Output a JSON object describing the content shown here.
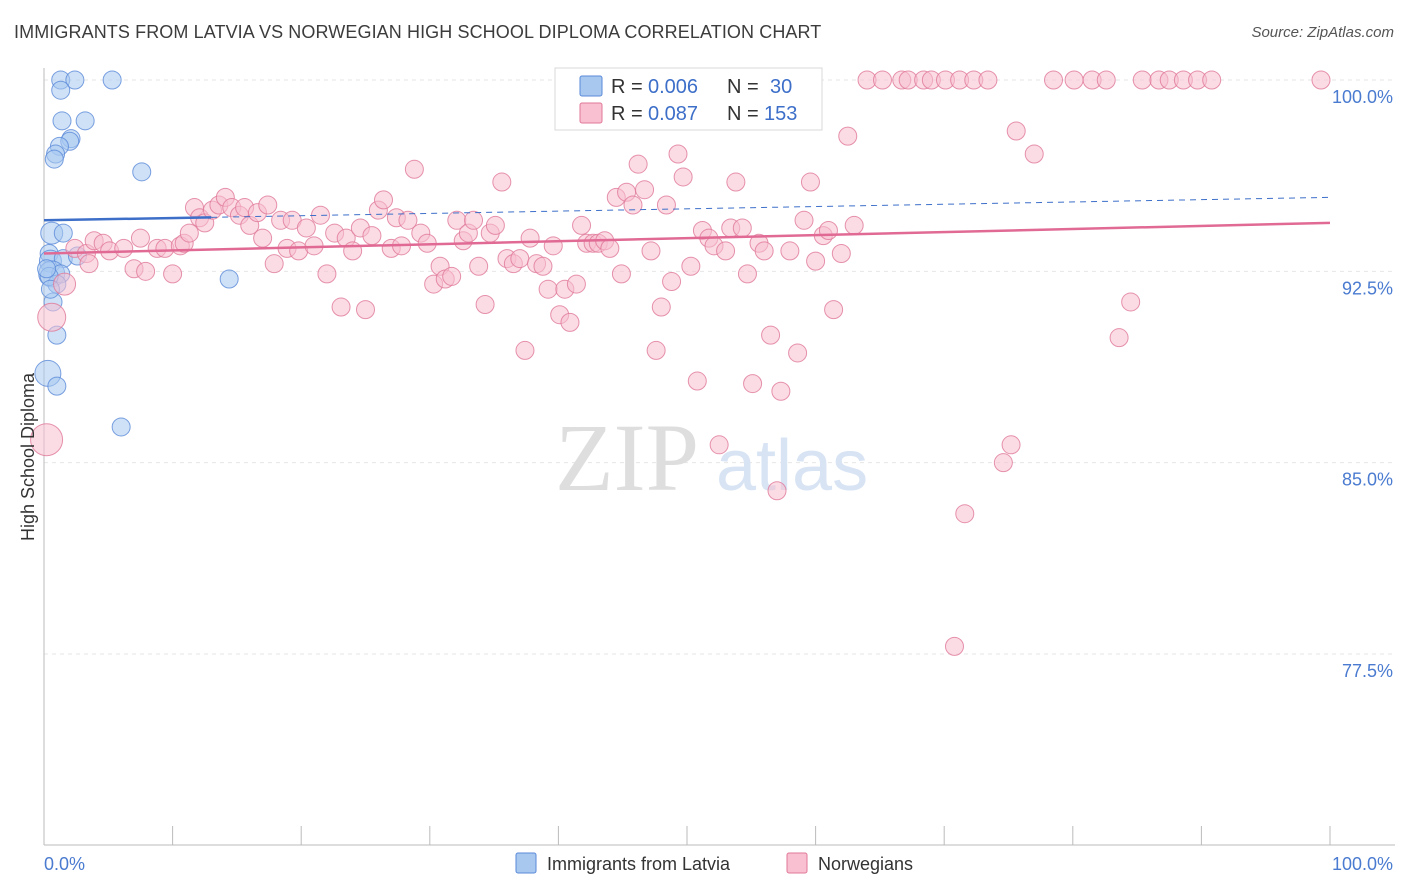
{
  "title": "IMMIGRANTS FROM LATVIA VS NORWEGIAN HIGH SCHOOL DIPLOMA CORRELATION CHART",
  "source": "Source: ZipAtlas.com",
  "watermark": {
    "zip": "ZIP",
    "atlas": "atlas"
  },
  "legend_box": {
    "rows": [
      {
        "r_label": "R = ",
        "r_value": "0.006",
        "n_label": "N = ",
        "n_value": "30",
        "color": "#a8c8f0",
        "stroke": "#5a8ad8"
      },
      {
        "r_label": "R = ",
        "r_value": "0.087",
        "n_label": "N = ",
        "n_value": "153",
        "color": "#f8c0d0",
        "stroke": "#e07898"
      }
    ]
  },
  "bottom_legend": [
    "Immigrants from Latvia",
    "Norwegians"
  ],
  "chart_data": {
    "type": "scatter",
    "xlabel": "",
    "ylabel": "High School Diploma",
    "xlim": [
      0,
      100
    ],
    "ylim": [
      70,
      100.5
    ],
    "x_tick_labels": [
      "0.0%",
      "100.0%"
    ],
    "y_ticks": [
      77.5,
      85.0,
      92.5,
      100.0
    ],
    "y_tick_labels": [
      "77.5%",
      "85.0%",
      "92.5%",
      "100.0%"
    ],
    "colors": {
      "latvia_fill": "#a8c8f0",
      "latvia_stroke": "#5a8ad8",
      "latvia_line": "#3d6fc9",
      "norw_fill": "#f8c0d0",
      "norw_stroke": "#e07898",
      "norw_line": "#e06a94"
    },
    "series": [
      {
        "name": "Immigrants from Latvia",
        "trend": {
          "x0": 0,
          "y0": 94.5,
          "x1": 100,
          "y1": 95.4,
          "solid_until": 13
        },
        "points": [
          [
            1.3,
            100,
            9
          ],
          [
            2.4,
            100,
            9
          ],
          [
            5.3,
            100,
            9
          ],
          [
            1.3,
            99.6,
            9
          ],
          [
            1.4,
            98.4,
            9
          ],
          [
            3.2,
            98.4,
            9
          ],
          [
            2.1,
            97.7,
            9
          ],
          [
            2.0,
            97.6,
            9
          ],
          [
            1.2,
            97.4,
            9
          ],
          [
            0.9,
            97.1,
            9
          ],
          [
            0.8,
            96.9,
            9
          ],
          [
            7.6,
            96.4,
            9
          ],
          [
            0.6,
            94.0,
            11
          ],
          [
            1.5,
            94.0,
            9
          ],
          [
            0.4,
            93.2,
            9
          ],
          [
            0.5,
            92.9,
            11
          ],
          [
            1.5,
            93.0,
            9
          ],
          [
            2.6,
            93.1,
            9
          ],
          [
            0.6,
            92.4,
            13
          ],
          [
            1.3,
            92.4,
            9
          ],
          [
            1.0,
            92.0,
            9
          ],
          [
            0.4,
            92.3,
            9
          ],
          [
            14.4,
            92.2,
            9
          ],
          [
            0.7,
            91.3,
            9
          ],
          [
            1.0,
            90.0,
            9
          ],
          [
            0.3,
            88.5,
            13
          ],
          [
            1.0,
            88.0,
            9
          ],
          [
            6.0,
            86.4,
            9
          ],
          [
            0.2,
            92.6,
            9
          ],
          [
            0.5,
            91.8,
            9
          ]
        ]
      },
      {
        "name": "Norwegians",
        "trend": {
          "x0": 0,
          "y0": 93.2,
          "x1": 100,
          "y1": 94.4
        },
        "points": [
          [
            0.6,
            90.7,
            14
          ],
          [
            0.2,
            85.9,
            16
          ],
          [
            1.6,
            92.0,
            11
          ],
          [
            2.4,
            93.4,
            9
          ],
          [
            3.3,
            93.2,
            9
          ],
          [
            3.5,
            92.8,
            9
          ],
          [
            3.9,
            93.7,
            9
          ],
          [
            4.6,
            93.6,
            9
          ],
          [
            5.1,
            93.3,
            9
          ],
          [
            6.2,
            93.4,
            9
          ],
          [
            7.0,
            92.6,
            9
          ],
          [
            7.5,
            93.8,
            9
          ],
          [
            7.9,
            92.5,
            9
          ],
          [
            8.8,
            93.4,
            9
          ],
          [
            9.4,
            93.4,
            9
          ],
          [
            10.0,
            92.4,
            9
          ],
          [
            10.6,
            93.5,
            9
          ],
          [
            10.9,
            93.6,
            9
          ],
          [
            11.3,
            94.0,
            9
          ],
          [
            11.7,
            95.0,
            9
          ],
          [
            12.1,
            94.6,
            9
          ],
          [
            12.5,
            94.4,
            9
          ],
          [
            13.1,
            94.9,
            9
          ],
          [
            13.6,
            95.1,
            9
          ],
          [
            14.1,
            95.4,
            9
          ],
          [
            14.6,
            95.0,
            9
          ],
          [
            15.2,
            94.7,
            9
          ],
          [
            15.6,
            95.0,
            9
          ],
          [
            16.0,
            94.3,
            9
          ],
          [
            16.6,
            94.8,
            9
          ],
          [
            17.0,
            93.8,
            9
          ],
          [
            17.4,
            95.1,
            9
          ],
          [
            17.9,
            92.8,
            9
          ],
          [
            18.4,
            94.5,
            9
          ],
          [
            18.9,
            93.4,
            9
          ],
          [
            19.3,
            94.5,
            9
          ],
          [
            19.8,
            93.3,
            9
          ],
          [
            20.4,
            94.2,
            9
          ],
          [
            21.0,
            93.5,
            9
          ],
          [
            21.5,
            94.7,
            9
          ],
          [
            22.0,
            92.4,
            9
          ],
          [
            22.6,
            94.0,
            9
          ],
          [
            23.1,
            91.1,
            9
          ],
          [
            23.5,
            93.8,
            9
          ],
          [
            24.0,
            93.3,
            9
          ],
          [
            24.6,
            94.2,
            9
          ],
          [
            25.0,
            91.0,
            9
          ],
          [
            25.5,
            93.9,
            9
          ],
          [
            26.0,
            94.9,
            9
          ],
          [
            26.4,
            95.3,
            9
          ],
          [
            27.0,
            93.4,
            9
          ],
          [
            27.4,
            94.6,
            9
          ],
          [
            27.8,
            93.5,
            9
          ],
          [
            28.3,
            94.5,
            9
          ],
          [
            28.8,
            96.5,
            9
          ],
          [
            29.3,
            94.0,
            9
          ],
          [
            29.8,
            93.6,
            9
          ],
          [
            30.3,
            92.0,
            9
          ],
          [
            30.8,
            92.7,
            9
          ],
          [
            31.2,
            92.2,
            9
          ],
          [
            31.7,
            92.3,
            9
          ],
          [
            32.1,
            94.5,
            9
          ],
          [
            32.6,
            93.7,
            9
          ],
          [
            33.0,
            94.0,
            9
          ],
          [
            33.4,
            94.5,
            9
          ],
          [
            33.8,
            92.7,
            9
          ],
          [
            34.3,
            91.2,
            9
          ],
          [
            34.7,
            94.0,
            9
          ],
          [
            35.1,
            94.3,
            9
          ],
          [
            35.6,
            96.0,
            9
          ],
          [
            36.0,
            93.0,
            9
          ],
          [
            36.5,
            92.8,
            9
          ],
          [
            37.0,
            93.0,
            9
          ],
          [
            37.4,
            89.4,
            9
          ],
          [
            37.8,
            93.8,
            9
          ],
          [
            38.3,
            92.8,
            9
          ],
          [
            38.8,
            92.7,
            9
          ],
          [
            39.2,
            91.8,
            9
          ],
          [
            39.6,
            93.5,
            9
          ],
          [
            40.1,
            90.8,
            9
          ],
          [
            40.5,
            91.8,
            9
          ],
          [
            40.9,
            90.5,
            9
          ],
          [
            41.4,
            92.0,
            9
          ],
          [
            41.8,
            94.3,
            9
          ],
          [
            42.2,
            93.6,
            9
          ],
          [
            42.7,
            93.6,
            9
          ],
          [
            43.1,
            93.6,
            9
          ],
          [
            43.6,
            93.7,
            9
          ],
          [
            44.0,
            93.4,
            9
          ],
          [
            44.5,
            95.4,
            9
          ],
          [
            44.9,
            92.4,
            9
          ],
          [
            45.3,
            95.6,
            9
          ],
          [
            45.8,
            95.1,
            9
          ],
          [
            46.2,
            96.7,
            9
          ],
          [
            46.7,
            95.7,
            9
          ],
          [
            47.2,
            93.3,
            9
          ],
          [
            47.6,
            89.4,
            9
          ],
          [
            48.0,
            91.1,
            9
          ],
          [
            48.4,
            95.1,
            9
          ],
          [
            48.8,
            92.1,
            9
          ],
          [
            49.3,
            97.1,
            9
          ],
          [
            49.7,
            96.2,
            9
          ],
          [
            50.3,
            92.7,
            9
          ],
          [
            50.8,
            88.2,
            9
          ],
          [
            51.2,
            94.1,
            9
          ],
          [
            51.7,
            93.8,
            9
          ],
          [
            52.1,
            93.5,
            9
          ],
          [
            52.5,
            85.7,
            9
          ],
          [
            53.0,
            93.3,
            9
          ],
          [
            53.4,
            94.2,
            9
          ],
          [
            53.8,
            96.0,
            9
          ],
          [
            54.3,
            94.2,
            9
          ],
          [
            54.7,
            92.4,
            9
          ],
          [
            55.1,
            88.1,
            9
          ],
          [
            55.6,
            93.6,
            9
          ],
          [
            56.0,
            93.3,
            9
          ],
          [
            56.5,
            90.0,
            9
          ],
          [
            57.0,
            83.9,
            9
          ],
          [
            57.3,
            87.8,
            9
          ],
          [
            58.0,
            93.3,
            9
          ],
          [
            58.6,
            89.3,
            9
          ],
          [
            59.1,
            94.5,
            9
          ],
          [
            59.6,
            96.0,
            9
          ],
          [
            60.0,
            92.9,
            9
          ],
          [
            60.6,
            93.9,
            9
          ],
          [
            61.0,
            94.1,
            9
          ],
          [
            61.4,
            91.0,
            9
          ],
          [
            62.0,
            93.2,
            9
          ],
          [
            62.5,
            97.8,
            9
          ],
          [
            63.0,
            94.3,
            9
          ],
          [
            64.0,
            100,
            9
          ],
          [
            65.2,
            100,
            9
          ],
          [
            66.7,
            100,
            9
          ],
          [
            67.2,
            100,
            9
          ],
          [
            68.4,
            100,
            9
          ],
          [
            69.0,
            100,
            9
          ],
          [
            70.1,
            100,
            9
          ],
          [
            71.2,
            100,
            9
          ],
          [
            72.3,
            100,
            9
          ],
          [
            73.4,
            100,
            9
          ],
          [
            74.6,
            85.0,
            9
          ],
          [
            75.2,
            85.7,
            9
          ],
          [
            75.6,
            98.0,
            9
          ],
          [
            77.0,
            97.1,
            9
          ],
          [
            78.5,
            100,
            9
          ],
          [
            80.1,
            100,
            9
          ],
          [
            81.5,
            100,
            9
          ],
          [
            82.6,
            100,
            9
          ],
          [
            83.6,
            89.9,
            9
          ],
          [
            84.5,
            91.3,
            9
          ],
          [
            85.4,
            100,
            9
          ],
          [
            86.7,
            100,
            9
          ],
          [
            71.6,
            83.0,
            9
          ],
          [
            70.8,
            77.8,
            9
          ],
          [
            87.5,
            100,
            9
          ],
          [
            88.6,
            100,
            9
          ],
          [
            89.7,
            100,
            9
          ],
          [
            90.8,
            100,
            9
          ],
          [
            99.3,
            100,
            9
          ]
        ]
      }
    ],
    "grid": true,
    "legend_placement": "bottom"
  }
}
